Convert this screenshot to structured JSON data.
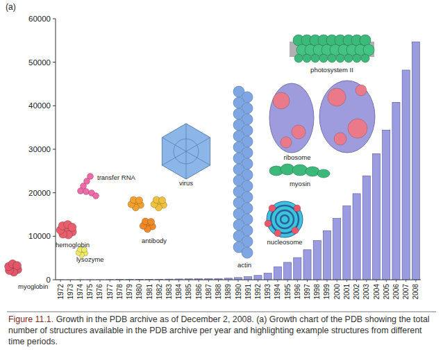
{
  "panel_label": "(a)",
  "chart_data": {
    "type": "bar",
    "categories": [
      "1972",
      "1973",
      "1974",
      "1975",
      "1976",
      "1977",
      "1978",
      "1979",
      "1980",
      "1981",
      "1982",
      "1983",
      "1984",
      "1985",
      "1986",
      "1987",
      "1988",
      "1989",
      "1990",
      "1991",
      "1992",
      "1993",
      "1994",
      "1995",
      "1996",
      "1997",
      "1998",
      "1999",
      "2000",
      "2001",
      "2002",
      "2003",
      "2004",
      "2005",
      "2006",
      "2007",
      "2008"
    ],
    "values": [
      7,
      9,
      12,
      13,
      14,
      38,
      57,
      69,
      80,
      97,
      121,
      154,
      179,
      199,
      216,
      254,
      282,
      360,
      505,
      707,
      1000,
      1500,
      3000,
      4000,
      5100,
      6900,
      9000,
      11300,
      14100,
      17000,
      19800,
      23900,
      29000,
      34400,
      40800,
      48200,
      54700
    ],
    "color": "#9b9be0",
    "ylim": [
      0,
      60000
    ],
    "yticks": [
      0,
      10000,
      20000,
      30000,
      40000,
      50000,
      60000
    ],
    "grid": false,
    "annotations": [
      "myoglobin",
      "lysozyme",
      "hemoglobin",
      "transfer RNA",
      "antibody",
      "virus",
      "actin",
      "nucleosome",
      "myosin",
      "ribosome",
      "photosystem II"
    ]
  },
  "caption": {
    "label": "Figure 11.1.",
    "text": "Growth in the PDB archive as of December 2, 2008. (a) Growth chart of the PDB showing the total number of structures available in the PDB archive per year and highlighting example structures from different time periods."
  }
}
